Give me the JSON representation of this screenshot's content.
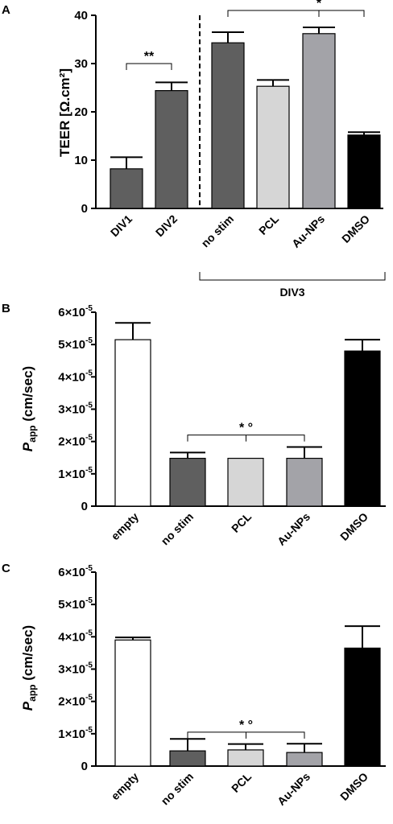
{
  "chart_data": [
    {
      "type": "bar",
      "panel": "A",
      "ylabel": "TEER [Ω.cm²]",
      "ylim": [
        0,
        40
      ],
      "yticks": [
        "0",
        "10",
        "20",
        "30",
        "40"
      ],
      "categories": [
        "DIV1",
        "DIV2",
        "no stim",
        "PCL",
        "Au-NPs",
        "DMSO"
      ],
      "values": [
        8.2,
        24.4,
        34.3,
        25.3,
        36.2,
        15.2
      ],
      "errors": [
        2.4,
        1.7,
        2.2,
        1.3,
        1.3,
        0.6
      ],
      "colors": [
        "#5f5f5f",
        "#5f5f5f",
        "#5f5f5f",
        "#d6d6d6",
        "#a3a3a8",
        "#000000"
      ],
      "group_label": "DIV3",
      "annotations": [
        {
          "label": "**",
          "from": "DIV1",
          "to": "DIV2"
        },
        {
          "label": "*",
          "from": "no stim",
          "to": "DMSO",
          "via": "Au-NPs"
        }
      ]
    },
    {
      "type": "bar",
      "panel": "B",
      "ylabel_main": "P",
      "ylabel_sub": "app",
      "ylabel_rest": " (cm/sec)",
      "ylim": [
        0,
        6e-05
      ],
      "yticks": [
        {
          "mantissa": "0",
          "exp": ""
        },
        {
          "mantissa": "1×10",
          "exp": "-5"
        },
        {
          "mantissa": "2×10",
          "exp": "-5"
        },
        {
          "mantissa": "3×10",
          "exp": "-5"
        },
        {
          "mantissa": "4×10",
          "exp": "-5"
        },
        {
          "mantissa": "5×10",
          "exp": "-5"
        },
        {
          "mantissa": "6×10",
          "exp": "-5"
        }
      ],
      "categories": [
        "empty",
        "no stim",
        "PCL",
        "Au-NPs",
        "DMSO"
      ],
      "values": [
        5.15e-05,
        1.48e-05,
        1.48e-05,
        1.48e-05,
        4.8e-05
      ],
      "errors": [
        5.2e-06,
        1.8e-06,
        0,
        3.5e-06,
        3.5e-06
      ],
      "colors": [
        "#ffffff",
        "#5f5f5f",
        "#d6d6d6",
        "#a3a3a8",
        "#000000"
      ],
      "annotations": [
        {
          "label": "* °",
          "from": "no stim",
          "to": "Au-NPs"
        }
      ]
    },
    {
      "type": "bar",
      "panel": "C",
      "ylabel_main": "P",
      "ylabel_sub": "app",
      "ylabel_rest": " (cm/sec)",
      "ylim": [
        0,
        6e-05
      ],
      "yticks": [
        {
          "mantissa": "0",
          "exp": ""
        },
        {
          "mantissa": "1×10",
          "exp": "-5"
        },
        {
          "mantissa": "2×10",
          "exp": "-5"
        },
        {
          "mantissa": "3×10",
          "exp": "-5"
        },
        {
          "mantissa": "4×10",
          "exp": "-5"
        },
        {
          "mantissa": "5×10",
          "exp": "-5"
        },
        {
          "mantissa": "6×10",
          "exp": "-5"
        }
      ],
      "categories": [
        "empty",
        "no stim",
        "PCL",
        "Au-NPs",
        "DMSO"
      ],
      "values": [
        3.9e-05,
        4.7e-06,
        5e-06,
        4.2e-06,
        3.65e-05
      ],
      "errors": [
        8e-07,
        3.7e-06,
        1.8e-06,
        2.7e-06,
        6.8e-06
      ],
      "colors": [
        "#ffffff",
        "#5f5f5f",
        "#d6d6d6",
        "#a3a3a8",
        "#000000"
      ],
      "annotations": [
        {
          "label": "* °",
          "from": "no stim",
          "to": "Au-NPs"
        }
      ]
    }
  ]
}
